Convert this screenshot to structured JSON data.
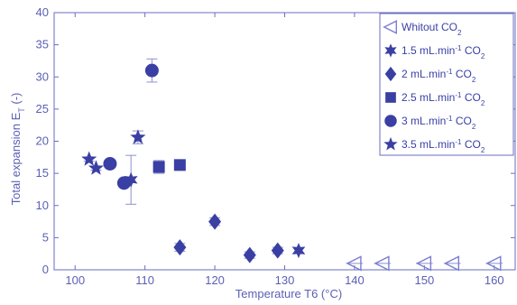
{
  "chart_data": {
    "type": "scatter",
    "title": "",
    "xlabel": "Temperature T6 (°C)",
    "ylabel_main": "Total expansion E",
    "ylabel_sub": "T",
    "ylabel_tail": " (-)",
    "xlim": [
      97,
      163
    ],
    "ylim": [
      0,
      40
    ],
    "xticks": [
      100,
      110,
      120,
      130,
      140,
      150,
      160
    ],
    "yticks": [
      0,
      5,
      10,
      15,
      20,
      25,
      30,
      35,
      40
    ],
    "grid": false,
    "legend_position": "top-right",
    "marker_color": "#3a3fa4",
    "error_bar_color": "#8e90cf",
    "axis_color": "#6a6ec0",
    "series": [
      {
        "name_main": "Whitout CO",
        "name_sup": "",
        "name_tail": "",
        "name_sub": "2",
        "marker": "triangle-left-open",
        "points": [
          {
            "x": 140,
            "y": 1.0,
            "yerr": 0,
            "xerr": 1.2
          },
          {
            "x": 144,
            "y": 1.0,
            "yerr": 0,
            "xerr": 1.2
          },
          {
            "x": 150,
            "y": 1.0,
            "yerr": 0,
            "xerr": 1.2
          },
          {
            "x": 154,
            "y": 1.0,
            "yerr": 0,
            "xerr": 1.2
          },
          {
            "x": 160,
            "y": 1.0,
            "yerr": 0,
            "xerr": 1.2
          }
        ]
      },
      {
        "name_main": "1.5 mL.min",
        "name_sup": "-1",
        "name_tail": " CO",
        "name_sub": "2",
        "marker": "star6",
        "points": [
          {
            "x": 108,
            "y": 14.0,
            "yerr": 3.8,
            "xerr": 0
          },
          {
            "x": 132,
            "y": 3.0,
            "yerr": 0.5,
            "xerr": 0
          }
        ]
      },
      {
        "name_main": "2 mL.min",
        "name_sup": "-1",
        "name_tail": " CO",
        "name_sub": "2",
        "marker": "diamond",
        "points": [
          {
            "x": 115,
            "y": 3.5,
            "yerr": 0.6,
            "xerr": 0
          },
          {
            "x": 120,
            "y": 7.5,
            "yerr": 0.6,
            "xerr": 0
          },
          {
            "x": 125,
            "y": 2.3,
            "yerr": 0.5,
            "xerr": 0
          },
          {
            "x": 129,
            "y": 3.0,
            "yerr": 0.5,
            "xerr": 0
          }
        ]
      },
      {
        "name_main": "2.5 mL.min",
        "name_sup": "-1",
        "name_tail": " CO",
        "name_sub": "2",
        "marker": "square",
        "points": [
          {
            "x": 112,
            "y": 16.0,
            "yerr": 1.0,
            "xerr": 0
          },
          {
            "x": 115,
            "y": 16.3,
            "yerr": 0.4,
            "xerr": 0
          }
        ]
      },
      {
        "name_main": "3 mL.min",
        "name_sup": "-1",
        "name_tail": " CO",
        "name_sub": "2",
        "marker": "circle",
        "points": [
          {
            "x": 105,
            "y": 16.5,
            "yerr": 0.5,
            "xerr": 0
          },
          {
            "x": 107,
            "y": 13.5,
            "yerr": 0.5,
            "xerr": 0
          },
          {
            "x": 111,
            "y": 31.0,
            "yerr": 1.8,
            "xerr": 0
          }
        ]
      },
      {
        "name_main": "3.5 mL.min",
        "name_sup": "-1",
        "name_tail": " CO",
        "name_sub": "2",
        "marker": "star5",
        "points": [
          {
            "x": 102,
            "y": 17.2,
            "yerr": 0.3,
            "xerr": 0
          },
          {
            "x": 103,
            "y": 15.8,
            "yerr": 0.3,
            "xerr": 0
          },
          {
            "x": 109,
            "y": 20.6,
            "yerr": 1.0,
            "xerr": 0
          }
        ]
      }
    ]
  }
}
